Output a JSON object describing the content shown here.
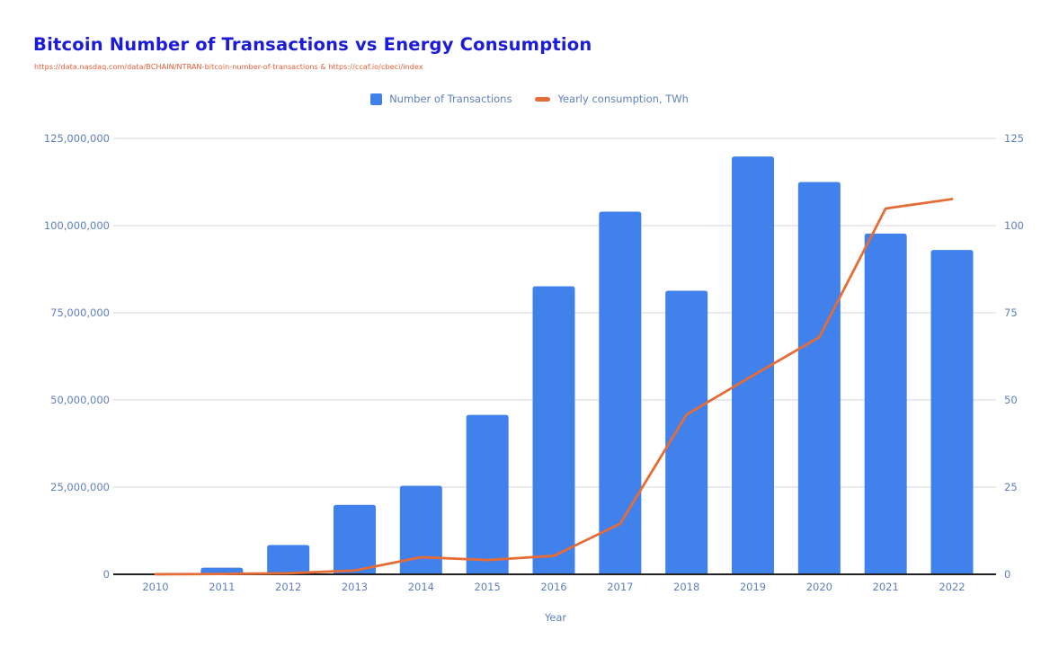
{
  "page": {
    "title": "Bitcoin Number of Transactions vs Energy Consumption",
    "subtitle": "https://data.nasdaq.com/data/BCHAIN/NTRAN-bitcoin-number-of-transactions & https://ccaf.io/cbeci/index"
  },
  "legend": {
    "items": [
      {
        "label": "Number of Transactions",
        "marker": "square"
      },
      {
        "label": "Yearly consumption, TWh",
        "marker": "dash"
      }
    ]
  },
  "colors": {
    "bar": "#4181ec",
    "line": "#e66c37",
    "title": "#1b1bd9",
    "subtitle": "#e85c35",
    "axis_label": "#5f7fbe",
    "gridline": "#e4e4e4",
    "axis_line": "#222222"
  },
  "axes": {
    "left": {
      "ticks": [
        "0",
        "25,000,000",
        "50,000,000",
        "75,000,000",
        "100,000,000",
        "125,000,000"
      ]
    },
    "right": {
      "ticks": [
        "0",
        "25",
        "50",
        "75",
        "100",
        "125"
      ]
    },
    "x": {
      "title": "Year"
    }
  },
  "chart_data": {
    "type": "combo",
    "categories": [
      "2010",
      "2011",
      "2012",
      "2013",
      "2014",
      "2015",
      "2016",
      "2017",
      "2018",
      "2019",
      "2020",
      "2021",
      "2022"
    ],
    "series": [
      {
        "name": "Number of Transactions",
        "type": "bar",
        "axis": "left",
        "values": [
          200000,
          1900000,
          8400000,
          19900000,
          25400000,
          45700000,
          82600000,
          104000000,
          81300000,
          119800000,
          112500000,
          97700000,
          93000000
        ]
      },
      {
        "name": "Yearly consumption, TWh",
        "type": "line",
        "axis": "right",
        "values": [
          0.02,
          0.1,
          0.3,
          1.1,
          4.9,
          4.1,
          5.3,
          14.5,
          45.8,
          57,
          68,
          104.9,
          107.6
        ]
      }
    ],
    "left_ylim": [
      0,
      125000000
    ],
    "right_ylim": [
      0,
      125
    ],
    "left_tick_step": 25000000,
    "right_tick_step": 25,
    "xlabel": "Year",
    "grid": true,
    "legend_position": "top"
  }
}
